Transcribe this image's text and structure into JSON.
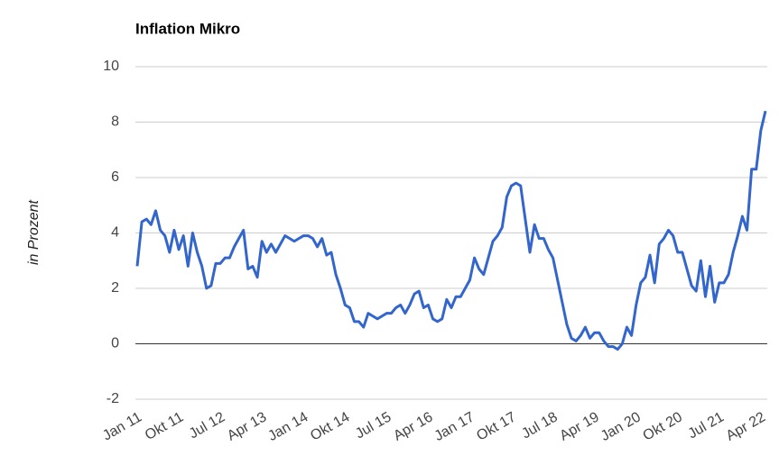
{
  "chart_data": {
    "type": "line",
    "title": "Inflation Mikro",
    "y_label": "in Prozent",
    "categories": [
      "Jan 11",
      null,
      null,
      null,
      null,
      null,
      null,
      null,
      null,
      "Okt 11",
      null,
      null,
      null,
      null,
      null,
      null,
      null,
      null,
      "Jul 12",
      null,
      null,
      null,
      null,
      null,
      null,
      null,
      null,
      "Apr 13",
      null,
      null,
      null,
      null,
      null,
      null,
      null,
      null,
      "Jan 14",
      null,
      null,
      null,
      null,
      null,
      null,
      null,
      null,
      "Okt 14",
      null,
      null,
      null,
      null,
      null,
      null,
      null,
      null,
      "Jul 15",
      null,
      null,
      null,
      null,
      null,
      null,
      null,
      null,
      "Apr 16",
      null,
      null,
      null,
      null,
      null,
      null,
      null,
      null,
      "Jan 17",
      null,
      null,
      null,
      null,
      null,
      null,
      null,
      null,
      "Okt 17",
      null,
      null,
      null,
      null,
      null,
      null,
      null,
      null,
      "Jul 18",
      null,
      null,
      null,
      null,
      null,
      null,
      null,
      null,
      "Apr 19",
      null,
      null,
      null,
      null,
      null,
      null,
      null,
      null,
      "Jan 20",
      null,
      null,
      null,
      null,
      null,
      null,
      null,
      null,
      "Okt 20",
      null,
      null,
      null,
      null,
      null,
      null,
      null,
      null,
      "Jul 21",
      null,
      null,
      null,
      null,
      null,
      null,
      null,
      null,
      "Apr 22",
      null
    ],
    "series": [
      {
        "color": "#3366cc",
        "values": [
          2.8,
          4.4,
          4.5,
          4.3,
          4.8,
          4.1,
          3.9,
          3.3,
          4.1,
          3.4,
          3.9,
          2.8,
          4.0,
          3.3,
          2.8,
          2.0,
          2.1,
          2.9,
          2.9,
          3.1,
          3.1,
          3.5,
          3.8,
          4.1,
          2.7,
          2.8,
          2.4,
          3.7,
          3.3,
          3.6,
          3.3,
          3.6,
          3.9,
          3.8,
          3.7,
          3.8,
          3.9,
          3.9,
          3.8,
          3.5,
          3.8,
          3.2,
          3.3,
          2.5,
          2.0,
          1.4,
          1.3,
          0.8,
          0.8,
          0.6,
          1.1,
          1.0,
          0.9,
          1.0,
          1.1,
          1.1,
          1.3,
          1.4,
          1.1,
          1.4,
          1.8,
          1.9,
          1.3,
          1.4,
          0.9,
          0.8,
          0.9,
          1.6,
          1.3,
          1.7,
          1.7,
          2.0,
          2.3,
          3.1,
          2.7,
          2.5,
          3.1,
          3.7,
          3.9,
          4.2,
          5.3,
          5.7,
          5.8,
          5.7,
          4.5,
          3.3,
          4.3,
          3.8,
          3.8,
          3.4,
          3.1,
          2.3,
          1.5,
          0.7,
          0.2,
          0.1,
          0.3,
          0.6,
          0.2,
          0.4,
          0.4,
          0.1,
          -0.1,
          -0.1,
          -0.2,
          0.0,
          0.6,
          0.3,
          1.4,
          2.2,
          2.4,
          3.2,
          2.2,
          3.6,
          3.8,
          4.1,
          3.9,
          3.3,
          3.3,
          2.7,
          2.1,
          1.9,
          3.0,
          1.7,
          2.8,
          1.5,
          2.2,
          2.2,
          2.5,
          3.3,
          3.9,
          4.6,
          4.1,
          6.3,
          6.3,
          7.7,
          8.4
        ]
      }
    ],
    "ylim": [
      -2,
      10
    ],
    "yticks": [
      -2,
      0,
      2,
      4,
      6,
      8,
      10
    ],
    "grid": true
  }
}
